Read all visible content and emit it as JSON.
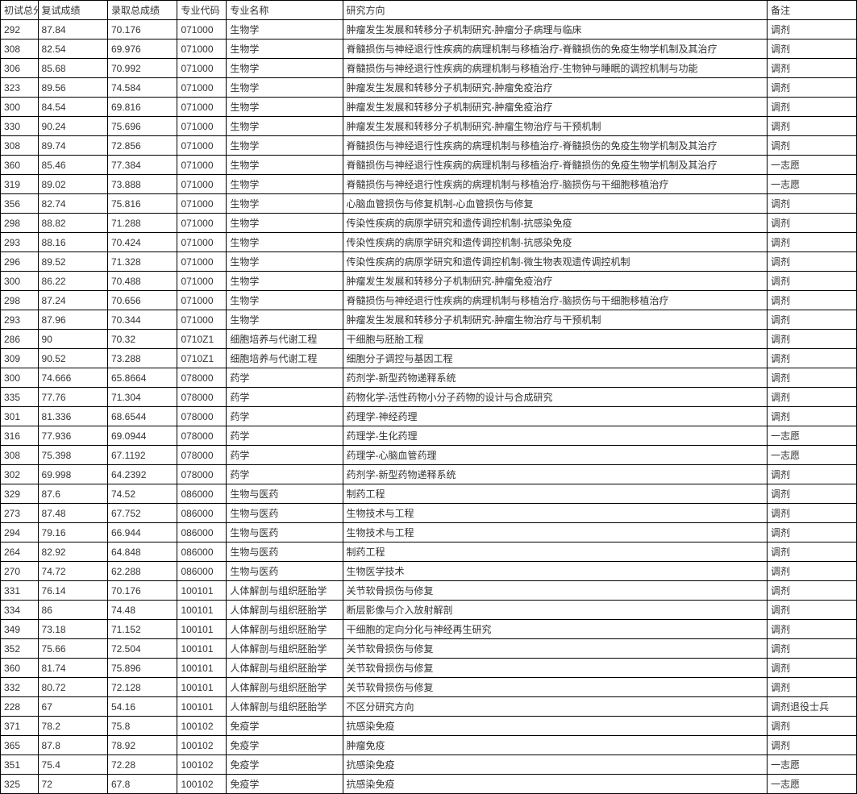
{
  "table": {
    "columns": [
      "初试总分",
      "复试成绩",
      "录取总成绩",
      "专业代码",
      "专业名称",
      "研究方向",
      "备注"
    ],
    "rows": [
      [
        "292",
        "87.84",
        "70.176",
        "071000",
        "生物学",
        "肿瘤发生发展和转移分子机制研究-肿瘤分子病理与临床",
        "调剂"
      ],
      [
        "308",
        "82.54",
        "69.976",
        "071000",
        "生物学",
        "脊髓损伤与神经退行性疾病的病理机制与移植治疗-脊髓损伤的免疫生物学机制及其治疗",
        "调剂"
      ],
      [
        "306",
        "85.68",
        "70.992",
        "071000",
        "生物学",
        "脊髓损伤与神经退行性疾病的病理机制与移植治疗-生物钟与睡眠的调控机制与功能",
        "调剂"
      ],
      [
        "323",
        "89.56",
        "74.584",
        "071000",
        "生物学",
        "肿瘤发生发展和转移分子机制研究-肿瘤免疫治疗",
        "调剂"
      ],
      [
        "300",
        "84.54",
        "69.816",
        "071000",
        "生物学",
        "肿瘤发生发展和转移分子机制研究-肿瘤免疫治疗",
        "调剂"
      ],
      [
        "330",
        "90.24",
        "75.696",
        "071000",
        "生物学",
        "肿瘤发生发展和转移分子机制研究-肿瘤生物治疗与干预机制",
        "调剂"
      ],
      [
        "308",
        "89.74",
        "72.856",
        "071000",
        "生物学",
        "脊髓损伤与神经退行性疾病的病理机制与移植治疗-脊髓损伤的免疫生物学机制及其治疗",
        "调剂"
      ],
      [
        "360",
        "85.46",
        "77.384",
        "071000",
        "生物学",
        "脊髓损伤与神经退行性疾病的病理机制与移植治疗-脊髓损伤的免疫生物学机制及其治疗",
        "一志愿"
      ],
      [
        "319",
        "89.02",
        "73.888",
        "071000",
        "生物学",
        "脊髓损伤与神经退行性疾病的病理机制与移植治疗-脑损伤与干细胞移植治疗",
        "一志愿"
      ],
      [
        "356",
        "82.74",
        "75.816",
        "071000",
        "生物学",
        "心脑血管损伤与修复机制-心血管损伤与修复",
        "调剂"
      ],
      [
        "298",
        "88.82",
        "71.288",
        "071000",
        "生物学",
        "传染性疾病的病原学研究和遗传调控机制-抗感染免疫",
        "调剂"
      ],
      [
        "293",
        "88.16",
        "70.424",
        "071000",
        "生物学",
        "传染性疾病的病原学研究和遗传调控机制-抗感染免疫",
        "调剂"
      ],
      [
        "296",
        "89.52",
        "71.328",
        "071000",
        "生物学",
        "传染性疾病的病原学研究和遗传调控机制-微生物表观遗传调控机制",
        "调剂"
      ],
      [
        "300",
        "86.22",
        "70.488",
        "071000",
        "生物学",
        "肿瘤发生发展和转移分子机制研究-肿瘤免疫治疗",
        "调剂"
      ],
      [
        "298",
        "87.24",
        "70.656",
        "071000",
        "生物学",
        "脊髓损伤与神经退行性疾病的病理机制与移植治疗-脑损伤与干细胞移植治疗",
        "调剂"
      ],
      [
        "293",
        "87.96",
        "70.344",
        "071000",
        "生物学",
        "肿瘤发生发展和转移分子机制研究-肿瘤生物治疗与干预机制",
        "调剂"
      ],
      [
        "286",
        "90",
        "70.32",
        "0710Z1",
        "细胞培养与代谢工程",
        "干细胞与胚胎工程",
        "调剂"
      ],
      [
        "309",
        "90.52",
        "73.288",
        "0710Z1",
        "细胞培养与代谢工程",
        "细胞分子调控与基因工程",
        "调剂"
      ],
      [
        "300",
        "74.666",
        "65.8664",
        "078000",
        "药学",
        "药剂学-新型药物递释系统",
        "调剂"
      ],
      [
        "335",
        "77.76",
        "71.304",
        "078000",
        "药学",
        "药物化学-活性药物小分子药物的设计与合成研究",
        "调剂"
      ],
      [
        "301",
        "81.336",
        "68.6544",
        "078000",
        "药学",
        "药理学-神经药理",
        "调剂"
      ],
      [
        "316",
        "77.936",
        "69.0944",
        "078000",
        "药学",
        "药理学-生化药理",
        "一志愿"
      ],
      [
        "308",
        "75.398",
        "67.1192",
        "078000",
        "药学",
        "药理学-心脑血管药理",
        "一志愿"
      ],
      [
        "302",
        "69.998",
        "64.2392",
        "078000",
        "药学",
        "药剂学-新型药物递释系统",
        "调剂"
      ],
      [
        "329",
        "87.6",
        "74.52",
        "086000",
        "生物与医药",
        "制药工程",
        "调剂"
      ],
      [
        "273",
        "87.48",
        "67.752",
        "086000",
        "生物与医药",
        "生物技术与工程",
        "调剂"
      ],
      [
        "294",
        "79.16",
        "66.944",
        "086000",
        "生物与医药",
        "生物技术与工程",
        "调剂"
      ],
      [
        "264",
        "82.92",
        "64.848",
        "086000",
        "生物与医药",
        "制药工程",
        "调剂"
      ],
      [
        "270",
        "74.72",
        "62.288",
        "086000",
        "生物与医药",
        "生物医学技术",
        "调剂"
      ],
      [
        "331",
        "76.14",
        "70.176",
        "100101",
        "人体解剖与组织胚胎学",
        "关节软骨损伤与修复",
        "调剂"
      ],
      [
        "334",
        "86",
        "74.48",
        "100101",
        "人体解剖与组织胚胎学",
        "断层影像与介入放射解剖",
        "调剂"
      ],
      [
        "349",
        "73.18",
        "71.152",
        "100101",
        "人体解剖与组织胚胎学",
        "干细胞的定向分化与神经再生研究",
        "调剂"
      ],
      [
        "352",
        "75.66",
        "72.504",
        "100101",
        "人体解剖与组织胚胎学",
        "关节软骨损伤与修复",
        "调剂"
      ],
      [
        "360",
        "81.74",
        "75.896",
        "100101",
        "人体解剖与组织胚胎学",
        "关节软骨损伤与修复",
        "调剂"
      ],
      [
        "332",
        "80.72",
        "72.128",
        "100101",
        "人体解剖与组织胚胎学",
        "关节软骨损伤与修复",
        "调剂"
      ],
      [
        "228",
        "67",
        "54.16",
        "100101",
        "人体解剖与组织胚胎学",
        "不区分研究方向",
        "调剂退役士兵"
      ],
      [
        "371",
        "78.2",
        "75.8",
        "100102",
        "免疫学",
        "抗感染免疫",
        "调剂"
      ],
      [
        "365",
        "87.8",
        "78.92",
        "100102",
        "免疫学",
        "肿瘤免疫",
        "调剂"
      ],
      [
        "351",
        "75.4",
        "72.28",
        "100102",
        "免疫学",
        "抗感染免疫",
        "一志愿"
      ],
      [
        "325",
        "72",
        "67.8",
        "100102",
        "免疫学",
        "抗感染免疫",
        "一志愿"
      ]
    ]
  }
}
